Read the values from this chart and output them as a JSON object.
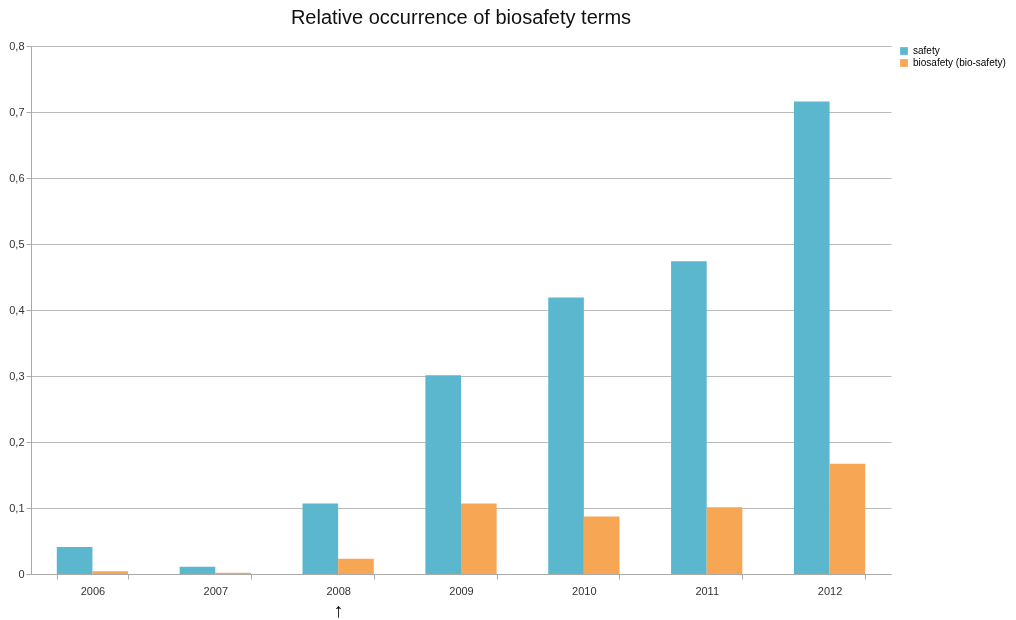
{
  "chart_data": {
    "type": "bar",
    "title": "Relative occurrence of biosafety terms",
    "categories": [
      "2006",
      "2007",
      "2008",
      "2009",
      "2010",
      "2011",
      "2012"
    ],
    "series": [
      {
        "name": "safety",
        "color": "#5bb7cd",
        "values": [
          0.041,
          0.011,
          0.107,
          0.301,
          0.419,
          0.474,
          0.716
        ]
      },
      {
        "name": "biosafety (bio-safety)",
        "color": "#f7a654",
        "values": [
          0.004,
          0.002,
          0.023,
          0.107,
          0.087,
          0.101,
          0.167
        ]
      }
    ],
    "ylim": [
      0,
      0.8
    ],
    "yticks": [
      0,
      {
        "value": 0.1,
        "label": "0,1"
      },
      {
        "value": 0.2,
        "label": "0,2"
      },
      {
        "value": 0.3,
        "label": "0,3"
      },
      {
        "value": 0.4,
        "label": "0,4"
      },
      {
        "value": 0.5,
        "label": "0,5"
      },
      {
        "value": 0.6,
        "label": "0,6"
      },
      {
        "value": 0.7,
        "label": "0,7"
      },
      {
        "value": 0.8,
        "label": "0,8"
      }
    ],
    "grid": "y",
    "legend": "right",
    "annotations": [
      "↑"
    ]
  }
}
